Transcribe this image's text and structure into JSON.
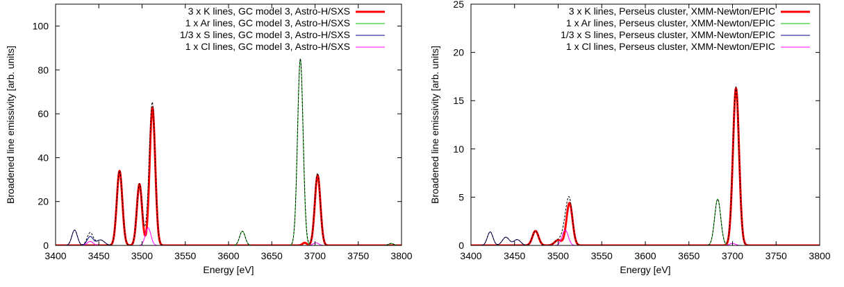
{
  "chart_data": [
    {
      "type": "line",
      "xlabel": "Energy [eV]",
      "ylabel": "Broadened line emissivity [arb. units]",
      "xlim": [
        3400,
        3800
      ],
      "ylim": [
        0,
        110
      ],
      "xticks": [
        3400,
        3450,
        3500,
        3550,
        3600,
        3650,
        3700,
        3750,
        3800
      ],
      "yticks": [
        0,
        20,
        40,
        60,
        80,
        100
      ],
      "legend": "top-right",
      "grid": false,
      "series": [
        {
          "name": "3 x K lines, GC model 3, Astro-H/SXS",
          "color": "#ff0000",
          "style": "solid-thick",
          "lines": [
            {
              "center": 3474,
              "height": 34,
              "sigma": 3.2
            },
            {
              "center": 3497,
              "height": 28,
              "sigma": 3.0
            },
            {
              "center": 3512,
              "height": 63,
              "sigma": 3.2
            },
            {
              "center": 3703,
              "height": 32,
              "sigma": 3.2
            },
            {
              "center": 3688,
              "height": 1.2,
              "sigma": 2.5
            }
          ]
        },
        {
          "name": "1 x Ar lines, GC model 3, Astro-H/SXS",
          "color": "#00c000",
          "style": "solid",
          "lines": [
            {
              "center": 3616,
              "height": 6.5,
              "sigma": 3.2
            },
            {
              "center": 3683,
              "height": 85,
              "sigma": 3.2
            },
            {
              "center": 3788,
              "height": 0.9,
              "sigma": 3.0
            }
          ]
        },
        {
          "name": "1/3 x S lines, GC model 3, Astro-H/SXS",
          "color": "#00008b",
          "style": "solid",
          "lines": [
            {
              "center": 3422,
              "height": 7,
              "sigma": 3.2
            },
            {
              "center": 3440,
              "height": 4,
              "sigma": 3.5
            },
            {
              "center": 3452,
              "height": 2.5,
              "sigma": 4.5
            }
          ]
        },
        {
          "name": "1 x Cl lines, GC model 3, Astro-H/SXS",
          "color": "#ff00ff",
          "style": "solid",
          "lines": [
            {
              "center": 3440,
              "height": 1.8,
              "sigma": 3.5
            },
            {
              "center": 3507,
              "height": 8,
              "sigma": 3.2
            },
            {
              "center": 3701,
              "height": 1.2,
              "sigma": 3.2
            }
          ]
        }
      ]
    },
    {
      "type": "line",
      "xlabel": "Energy [eV]",
      "ylabel": "Broadened line emissivity [arb. units]",
      "xlim": [
        3400,
        3800
      ],
      "ylim": [
        0,
        25
      ],
      "xticks": [
        3400,
        3450,
        3500,
        3550,
        3600,
        3650,
        3700,
        3750,
        3800
      ],
      "yticks": [
        0,
        5,
        10,
        15,
        20,
        25
      ],
      "legend": "top-right",
      "grid": false,
      "series": [
        {
          "name": "3 x K lines, Perseus cluster, XMM-Newton/EPIC",
          "color": "#ff0000",
          "style": "solid-thick",
          "lines": [
            {
              "center": 3474,
              "height": 1.5,
              "sigma": 3.5
            },
            {
              "center": 3500,
              "height": 0.55,
              "sigma": 4.0
            },
            {
              "center": 3513,
              "height": 4.4,
              "sigma": 3.5
            },
            {
              "center": 3704,
              "height": 16.3,
              "sigma": 3.5
            }
          ]
        },
        {
          "name": "1 x Ar lines, Perseus cluster, XMM-Newton/EPIC",
          "color": "#00c000",
          "style": "solid",
          "lines": [
            {
              "center": 3683,
              "height": 4.8,
              "sigma": 3.5
            }
          ]
        },
        {
          "name": "1/3 x S lines, Perseus cluster, XMM-Newton/EPIC",
          "color": "#00008b",
          "style": "solid",
          "lines": [
            {
              "center": 3422,
              "height": 1.4,
              "sigma": 3.2
            },
            {
              "center": 3440,
              "height": 0.85,
              "sigma": 4.0
            },
            {
              "center": 3453,
              "height": 0.6,
              "sigma": 4.0
            }
          ]
        },
        {
          "name": "1 x Cl lines, Perseus cluster, XMM-Newton/EPIC",
          "color": "#ff00ff",
          "style": "solid",
          "lines": [
            {
              "center": 3508,
              "height": 1.6,
              "sigma": 3.5
            },
            {
              "center": 3700,
              "height": 0.2,
              "sigma": 3.5
            }
          ]
        }
      ]
    }
  ]
}
